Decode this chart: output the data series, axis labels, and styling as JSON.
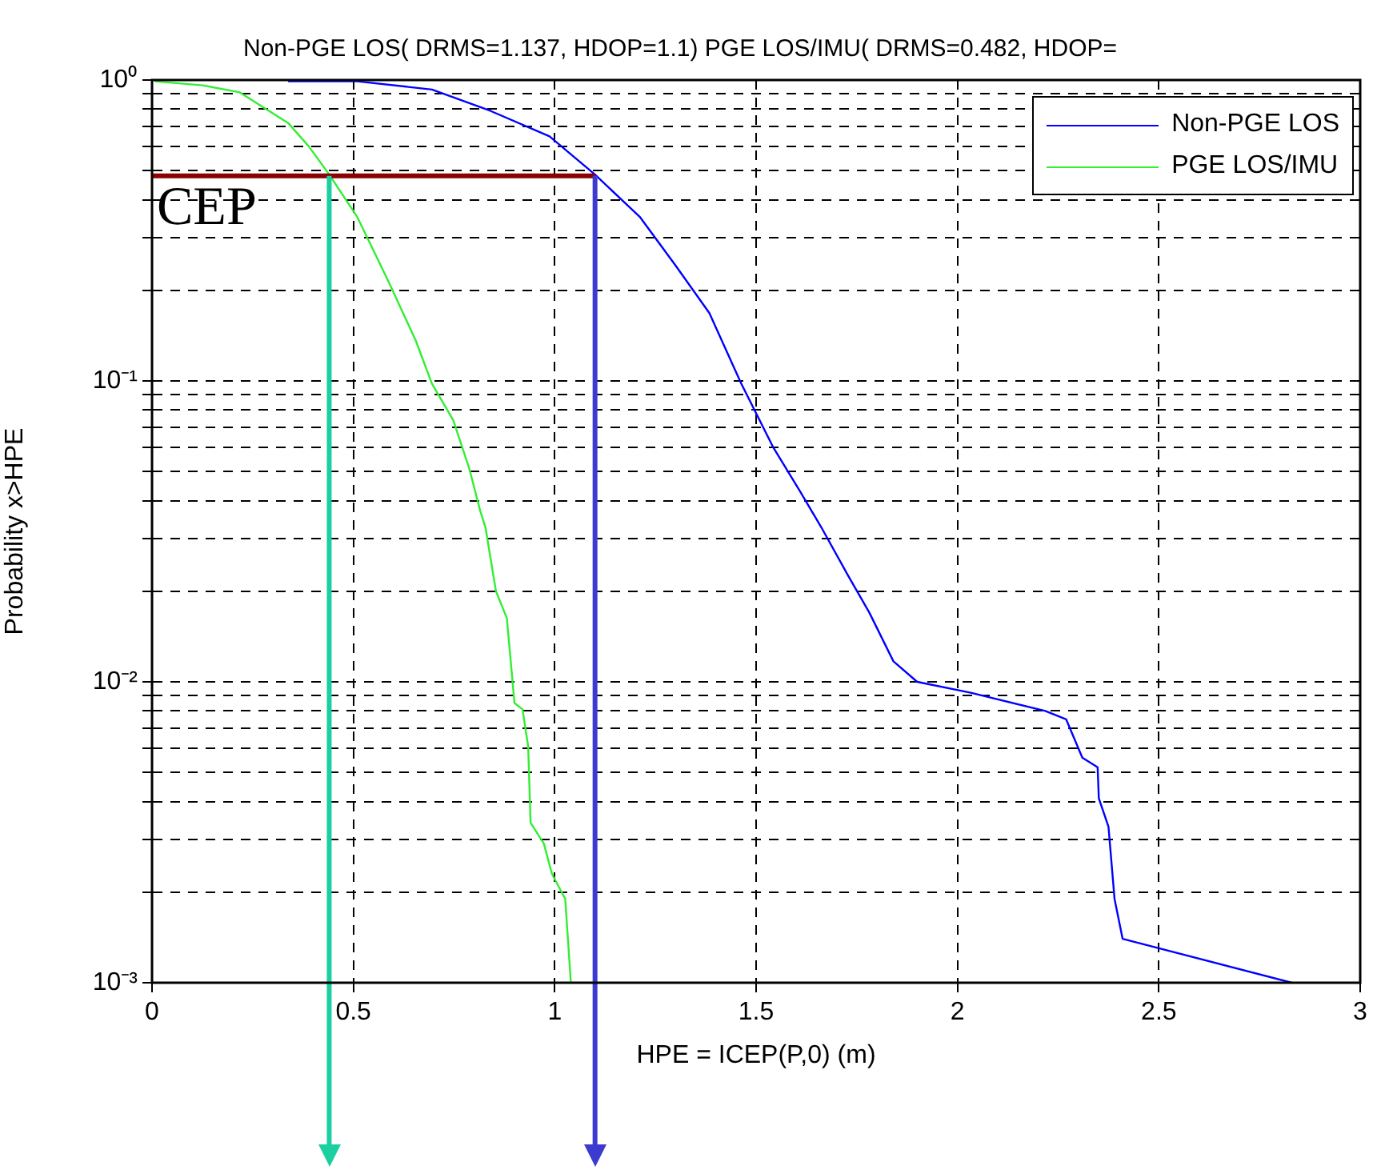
{
  "chart_data": {
    "type": "line",
    "title": "Non-PGE LOS( DRMS=1.137, HDOP=1.1) PGE LOS/IMU( DRMS=0.482, HDOP=",
    "xlabel": "HPE = ICEP(P,0) (m)",
    "ylabel": "Probability x>HPE",
    "series": [
      {
        "name": "Non-PGE LOS",
        "color": "#0000ff",
        "x": [
          0.338,
          0.51,
          0.695,
          0.84,
          0.987,
          1.1,
          1.212,
          1.3,
          1.384,
          1.463,
          1.543,
          1.609,
          1.662,
          1.728,
          1.781,
          1.841,
          1.9,
          2.033,
          2.218,
          2.27,
          2.31,
          2.348,
          2.351,
          2.375,
          2.39,
          2.41,
          2.83
        ],
        "values": [
          0.99,
          0.99,
          0.93,
          0.79,
          0.65,
          0.485,
          0.35,
          0.242,
          0.168,
          0.098,
          0.06,
          0.043,
          0.0326,
          0.0226,
          0.017,
          0.0117,
          0.01,
          0.0092,
          0.008,
          0.0075,
          0.0056,
          0.0052,
          0.0041,
          0.0033,
          0.0019,
          0.0014,
          0.001
        ]
      },
      {
        "name": "PGE LOS/IMU",
        "color": "#33ee33",
        "x": [
          0.007,
          0.126,
          0.218,
          0.338,
          0.39,
          0.44,
          0.51,
          0.59,
          0.655,
          0.695,
          0.748,
          0.788,
          0.815,
          0.828,
          0.854,
          0.881,
          0.9,
          0.92,
          0.934,
          0.94,
          0.973,
          0.993,
          1.026,
          1.04
        ],
        "values": [
          0.99,
          0.96,
          0.91,
          0.72,
          0.6,
          0.485,
          0.35,
          0.21,
          0.136,
          0.098,
          0.074,
          0.051,
          0.037,
          0.0326,
          0.02,
          0.0163,
          0.0085,
          0.0081,
          0.0061,
          0.0034,
          0.0029,
          0.0023,
          0.0019,
          0.001
        ]
      }
    ],
    "xlim": [
      0,
      3
    ],
    "xticks": [
      0,
      0.5,
      1,
      1.5,
      2,
      2.5,
      3
    ],
    "log": true,
    "ylim": [
      0.001,
      1
    ],
    "yticks": [
      {
        "value": 0.001,
        "label": "10⁻³"
      },
      {
        "value": 0.002,
        "label": null
      },
      {
        "value": 0.003,
        "label": null
      },
      {
        "value": 0.004,
        "label": null
      },
      {
        "value": 0.005,
        "label": null
      },
      {
        "value": 0.006,
        "label": null
      },
      {
        "value": 0.007,
        "label": null
      },
      {
        "value": 0.008,
        "label": null
      },
      {
        "value": 0.009,
        "label": null
      },
      {
        "value": 0.01,
        "label": "10⁻²"
      },
      {
        "value": 0.02,
        "label": null
      },
      {
        "value": 0.03,
        "label": null
      },
      {
        "value": 0.04,
        "label": null
      },
      {
        "value": 0.05,
        "label": null
      },
      {
        "value": 0.06,
        "label": null
      },
      {
        "value": 0.07,
        "label": null
      },
      {
        "value": 0.08,
        "label": null
      },
      {
        "value": 0.09,
        "label": null
      },
      {
        "value": 0.1,
        "label": "10⁻¹"
      },
      {
        "value": 0.2,
        "label": null
      },
      {
        "value": 0.3,
        "label": null
      },
      {
        "value": 0.4,
        "label": null
      },
      {
        "value": 0.5,
        "label": null
      },
      {
        "value": 0.6,
        "label": null
      },
      {
        "value": 0.7,
        "label": null
      },
      {
        "value": 0.8,
        "label": null
      },
      {
        "value": 0.9,
        "label": null
      },
      {
        "value": 1,
        "label": "10⁰"
      }
    ],
    "ref_lines": [
      {
        "axis": "y",
        "value": 0.48,
        "label": "CEP",
        "color": "#8b0000"
      },
      {
        "axis": "x",
        "value": 0.44,
        "color": "#1ccfa0"
      },
      {
        "axis": "x",
        "value": 1.1,
        "color": "#3b3bd0"
      }
    ],
    "grid": true,
    "line_style": "solid",
    "marker": "none",
    "legend": "top right"
  }
}
